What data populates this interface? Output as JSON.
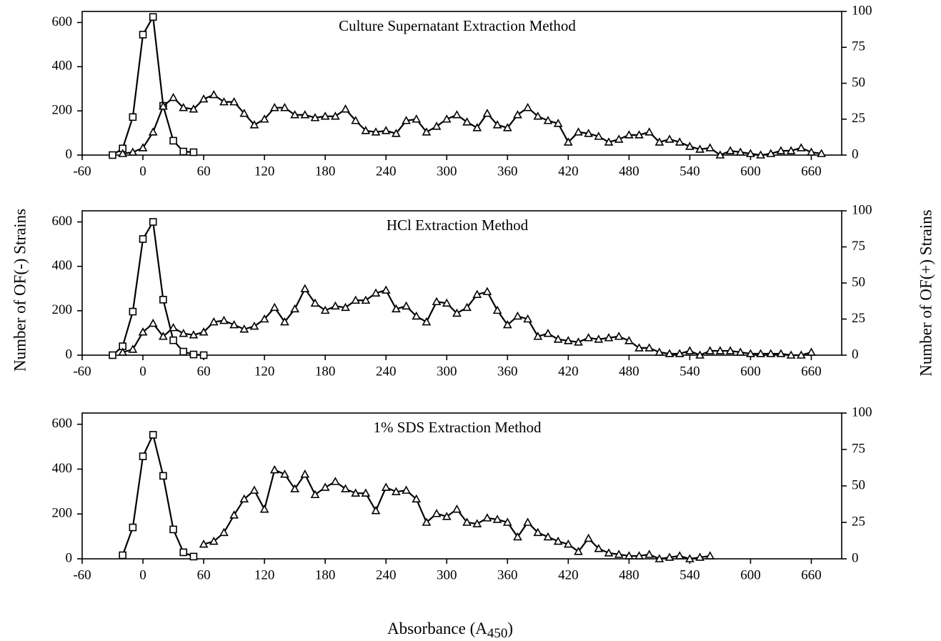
{
  "chart_data": [
    {
      "type": "line",
      "title": "Culture Supernatant Extraction Method",
      "xlim": [
        -60,
        690
      ],
      "ylim": [
        0,
        650
      ],
      "y2lim": [
        0,
        100
      ],
      "xticks": [
        -60,
        0,
        60,
        120,
        180,
        240,
        300,
        360,
        420,
        480,
        540,
        600,
        660
      ],
      "yticks": [
        0,
        200,
        400,
        600
      ],
      "y2ticks": [
        0,
        25,
        50,
        75,
        100
      ],
      "series": [
        {
          "marker": "square",
          "color": "#000000",
          "x": [
            -30,
            -20,
            -10,
            0,
            10,
            20,
            30,
            40,
            50
          ],
          "values": [
            0,
            30,
            172,
            545,
            625,
            223,
            65,
            16,
            13
          ]
        },
        {
          "marker": "triangle",
          "color": "#000000",
          "axis": "y2",
          "x": [
            -20,
            -10,
            0,
            10,
            20,
            30,
            40,
            50,
            60,
            70,
            80,
            90,
            100,
            110,
            120,
            130,
            140,
            150,
            160,
            170,
            180,
            190,
            200,
            210,
            220,
            230,
            240,
            250,
            260,
            270,
            280,
            290,
            300,
            310,
            320,
            330,
            340,
            350,
            360,
            370,
            380,
            390,
            400,
            410,
            420,
            430,
            440,
            450,
            460,
            470,
            480,
            490,
            500,
            510,
            520,
            530,
            540,
            550,
            560,
            570,
            580,
            590,
            600,
            610,
            620,
            630,
            640,
            650,
            660,
            670
          ],
          "values": [
            1,
            2,
            5,
            16,
            34,
            40,
            33,
            32,
            39,
            42,
            37,
            37,
            29,
            21,
            25,
            33,
            33,
            28,
            28,
            26,
            27,
            27,
            32,
            24,
            17,
            16,
            17,
            15,
            24,
            25,
            16,
            20,
            25,
            28,
            23,
            19,
            29,
            21,
            19,
            28,
            33,
            27,
            24,
            22,
            9,
            16,
            15,
            13,
            9,
            11,
            14,
            14,
            16,
            9,
            11,
            9,
            6,
            4,
            5,
            0,
            3,
            2,
            1,
            0,
            1,
            3,
            3,
            5,
            2,
            1
          ]
        }
      ]
    },
    {
      "type": "line",
      "title": "HCl Extraction Method",
      "xlim": [
        -60,
        690
      ],
      "ylim": [
        0,
        650
      ],
      "y2lim": [
        0,
        100
      ],
      "xticks": [
        -60,
        0,
        60,
        120,
        180,
        240,
        300,
        360,
        420,
        480,
        540,
        600,
        660
      ],
      "yticks": [
        0,
        200,
        400,
        600
      ],
      "y2ticks": [
        0,
        25,
        50,
        75,
        100
      ],
      "series": [
        {
          "marker": "square",
          "color": "#000000",
          "x": [
            -30,
            -20,
            -10,
            0,
            10,
            20,
            30,
            40,
            50,
            60
          ],
          "values": [
            0,
            40,
            196,
            523,
            600,
            250,
            67,
            16,
            3,
            0
          ]
        },
        {
          "marker": "triangle",
          "color": "#000000",
          "axis": "y2",
          "x": [
            -20,
            -10,
            0,
            10,
            20,
            30,
            40,
            50,
            60,
            70,
            80,
            90,
            100,
            110,
            120,
            130,
            140,
            150,
            160,
            170,
            180,
            190,
            200,
            210,
            220,
            230,
            240,
            250,
            260,
            270,
            280,
            290,
            300,
            310,
            320,
            330,
            340,
            350,
            360,
            370,
            380,
            390,
            400,
            410,
            420,
            430,
            440,
            450,
            460,
            470,
            480,
            490,
            500,
            510,
            520,
            530,
            540,
            550,
            560,
            570,
            580,
            590,
            600,
            610,
            620,
            630,
            640,
            650,
            660
          ],
          "values": [
            2,
            4,
            16,
            22,
            13,
            19,
            15,
            14,
            16,
            23,
            24,
            21,
            18,
            20,
            25,
            33,
            23,
            32,
            46,
            36,
            31,
            34,
            33,
            38,
            38,
            43,
            45,
            32,
            34,
            27,
            23,
            37,
            36,
            29,
            33,
            42,
            44,
            31,
            21,
            27,
            25,
            13,
            15,
            11,
            10,
            9,
            12,
            11,
            12,
            13,
            10,
            5,
            5,
            2,
            1,
            1,
            3,
            0,
            3,
            3,
            3,
            2,
            1,
            1,
            1,
            1,
            0,
            0,
            2
          ]
        }
      ]
    },
    {
      "type": "line",
      "title": "1% SDS Extraction Method",
      "xlim": [
        -60,
        690
      ],
      "ylim": [
        0,
        650
      ],
      "y2lim": [
        0,
        100
      ],
      "xticks": [
        -60,
        0,
        60,
        120,
        180,
        240,
        300,
        360,
        420,
        480,
        540,
        600,
        660
      ],
      "yticks": [
        0,
        200,
        400,
        600
      ],
      "y2ticks": [
        0,
        25,
        50,
        75,
        100
      ],
      "series": [
        {
          "marker": "square",
          "color": "#000000",
          "x": [
            -20,
            -10,
            0,
            10,
            20,
            30,
            40,
            50
          ],
          "values": [
            16,
            140,
            457,
            553,
            370,
            131,
            29,
            10
          ]
        },
        {
          "marker": "triangle",
          "color": "#000000",
          "axis": "y2",
          "x": [
            60,
            70,
            80,
            90,
            100,
            110,
            120,
            130,
            140,
            150,
            160,
            170,
            180,
            190,
            200,
            210,
            220,
            230,
            240,
            250,
            260,
            270,
            280,
            290,
            300,
            310,
            320,
            330,
            340,
            350,
            360,
            370,
            380,
            390,
            400,
            410,
            420,
            430,
            440,
            450,
            460,
            470,
            480,
            490,
            500,
            510,
            520,
            530,
            540,
            550,
            560
          ],
          "values": [
            10,
            12,
            18,
            30,
            41,
            47,
            34,
            61,
            58,
            48,
            58,
            44,
            49,
            53,
            48,
            45,
            45,
            33,
            49,
            46,
            47,
            41,
            25,
            31,
            29,
            34,
            25,
            24,
            28,
            27,
            25,
            15,
            25,
            18,
            15,
            12,
            10,
            5,
            14,
            7,
            4,
            3,
            2,
            2,
            3,
            0,
            1,
            2,
            0,
            1,
            2
          ]
        }
      ]
    }
  ],
  "ylabel": "Number of OF(-) Strains",
  "y2label": "Number of OF(+) Strains",
  "xlabel": [
    "Absorbance (A",
    "450",
    ")"
  ]
}
